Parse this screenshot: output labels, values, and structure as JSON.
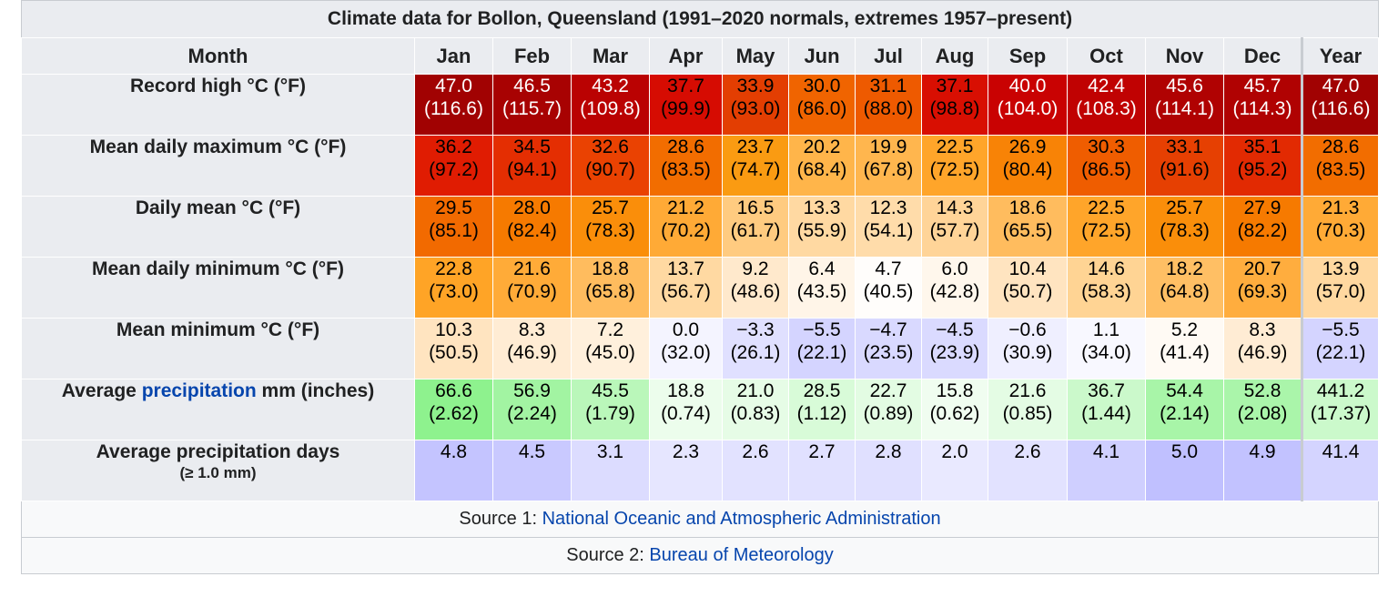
{
  "title": "Climate data for Bollon, Queensland (1991–2020 normals, extremes 1957–present)",
  "header": {
    "month": "Month",
    "months": [
      "Jan",
      "Feb",
      "Mar",
      "Apr",
      "May",
      "Jun",
      "Jul",
      "Aug",
      "Sep",
      "Oct",
      "Nov",
      "Dec"
    ],
    "year": "Year"
  },
  "rows": [
    {
      "label": "Record high °C (°F)",
      "label_pre": "",
      "label_link": "",
      "label_post": "",
      "note": "",
      "values": [
        [
          "47.0",
          "(116.6)"
        ],
        [
          "46.5",
          "(115.7)"
        ],
        [
          "43.2",
          "(109.8)"
        ],
        [
          "37.7",
          "(99.9)"
        ],
        [
          "33.9",
          "(93.0)"
        ],
        [
          "30.0",
          "(86.0)"
        ],
        [
          "31.1",
          "(88.0)"
        ],
        [
          "37.1",
          "(98.8)"
        ],
        [
          "40.0",
          "(104.0)"
        ],
        [
          "42.4",
          "(108.3)"
        ],
        [
          "45.6",
          "(114.1)"
        ],
        [
          "45.7",
          "(114.3)"
        ],
        [
          "47.0",
          "(116.6)"
        ]
      ],
      "colors": [
        "#a10202",
        "#a80202",
        "#ba0202",
        "#d60c02",
        "#e33e02",
        "#f06400",
        "#ee5a00",
        "#d80f02",
        "#c90202",
        "#c00202",
        "#b00202",
        "#b00202",
        "#a10202"
      ],
      "text": [
        "#fff",
        "#fff",
        "#fff",
        "#000",
        "#000",
        "#000",
        "#000",
        "#000",
        "#fff",
        "#fff",
        "#fff",
        "#fff",
        "#fff"
      ]
    },
    {
      "label": "Mean daily maximum °C (°F)",
      "label_pre": "",
      "label_link": "",
      "label_post": "",
      "note": "",
      "values": [
        [
          "36.2",
          "(97.2)"
        ],
        [
          "34.5",
          "(94.1)"
        ],
        [
          "32.6",
          "(90.7)"
        ],
        [
          "28.6",
          "(83.5)"
        ],
        [
          "23.7",
          "(74.7)"
        ],
        [
          "20.2",
          "(68.4)"
        ],
        [
          "19.9",
          "(67.8)"
        ],
        [
          "22.5",
          "(72.5)"
        ],
        [
          "26.9",
          "(80.4)"
        ],
        [
          "30.3",
          "(86.5)"
        ],
        [
          "33.1",
          "(91.6)"
        ],
        [
          "35.1",
          "(95.2)"
        ],
        [
          "28.6",
          "(83.5)"
        ]
      ],
      "colors": [
        "#e01c02",
        "#e42e02",
        "#ea4202",
        "#f26d00",
        "#fa9b12",
        "#ffb54a",
        "#ffb64e",
        "#ffa52a",
        "#f88306",
        "#ef5d00",
        "#e64002",
        "#e22a02",
        "#f26d00"
      ],
      "text": [
        "#000",
        "#000",
        "#000",
        "#000",
        "#000",
        "#000",
        "#000",
        "#000",
        "#000",
        "#000",
        "#000",
        "#000",
        "#000"
      ]
    },
    {
      "label": "Daily mean °C (°F)",
      "label_pre": "",
      "label_link": "",
      "label_post": "",
      "note": "",
      "values": [
        [
          "29.5",
          "(85.1)"
        ],
        [
          "28.0",
          "(82.4)"
        ],
        [
          "25.7",
          "(78.3)"
        ],
        [
          "21.2",
          "(70.2)"
        ],
        [
          "16.5",
          "(61.7)"
        ],
        [
          "13.3",
          "(55.9)"
        ],
        [
          "12.3",
          "(54.1)"
        ],
        [
          "14.3",
          "(57.7)"
        ],
        [
          "18.6",
          "(65.5)"
        ],
        [
          "22.5",
          "(72.5)"
        ],
        [
          "25.7",
          "(78.3)"
        ],
        [
          "27.9",
          "(82.2)"
        ],
        [
          "21.3",
          "(70.3)"
        ]
      ],
      "colors": [
        "#f26a00",
        "#f67a00",
        "#fa8e0a",
        "#ffaa36",
        "#ffcb80",
        "#ffd9a2",
        "#ffdcaa",
        "#ffd498",
        "#ffbc5e",
        "#ffa52a",
        "#fa8e0a",
        "#f67a00",
        "#ffaa36"
      ],
      "text": [
        "#000",
        "#000",
        "#000",
        "#000",
        "#000",
        "#000",
        "#000",
        "#000",
        "#000",
        "#000",
        "#000",
        "#000",
        "#000"
      ]
    },
    {
      "label": "Mean daily minimum °C (°F)",
      "label_pre": "",
      "label_link": "",
      "label_post": "",
      "note": "",
      "values": [
        [
          "22.8",
          "(73.0)"
        ],
        [
          "21.6",
          "(70.9)"
        ],
        [
          "18.8",
          "(65.8)"
        ],
        [
          "13.7",
          "(56.7)"
        ],
        [
          "9.2",
          "(48.6)"
        ],
        [
          "6.4",
          "(43.5)"
        ],
        [
          "4.7",
          "(40.5)"
        ],
        [
          "6.0",
          "(42.8)"
        ],
        [
          "10.4",
          "(50.7)"
        ],
        [
          "14.6",
          "(58.3)"
        ],
        [
          "18.2",
          "(64.8)"
        ],
        [
          "20.7",
          "(69.3)"
        ],
        [
          "13.9",
          "(57.0)"
        ]
      ],
      "colors": [
        "#ffa426",
        "#ffab38",
        "#ffbc5e",
        "#ffd9a2",
        "#ffe9cc",
        "#fff5e8",
        "#fffdfb",
        "#fff7ec",
        "#ffe4c0",
        "#ffd494",
        "#ffbf64",
        "#ffad3e",
        "#ffd8a0"
      ],
      "text": [
        "#000",
        "#000",
        "#000",
        "#000",
        "#000",
        "#000",
        "#000",
        "#000",
        "#000",
        "#000",
        "#000",
        "#000",
        "#000"
      ]
    },
    {
      "label": "Mean minimum °C (°F)",
      "label_pre": "",
      "label_link": "",
      "label_post": "",
      "note": "",
      "values": [
        [
          "10.3",
          "(50.5)"
        ],
        [
          "8.3",
          "(46.9)"
        ],
        [
          "7.2",
          "(45.0)"
        ],
        [
          "0.0",
          "(32.0)"
        ],
        [
          "−3.3",
          "(26.1)"
        ],
        [
          "−5.5",
          "(22.1)"
        ],
        [
          "−4.7",
          "(23.5)"
        ],
        [
          "−4.5",
          "(23.9)"
        ],
        [
          "−0.6",
          "(30.9)"
        ],
        [
          "1.1",
          "(34.0)"
        ],
        [
          "5.2",
          "(41.4)"
        ],
        [
          "8.3",
          "(46.9)"
        ],
        [
          "−5.5",
          "(22.1)"
        ]
      ],
      "colors": [
        "#ffe4c0",
        "#ffecd4",
        "#fff0dc",
        "#f4f4ff",
        "#e0e0ff",
        "#d4d4ff",
        "#d9d9ff",
        "#dadaff",
        "#efefff",
        "#f8f8ff",
        "#fffaf4",
        "#ffecd4",
        "#d4d4ff"
      ],
      "text": [
        "#000",
        "#000",
        "#000",
        "#000",
        "#000",
        "#000",
        "#000",
        "#000",
        "#000",
        "#000",
        "#000",
        "#000",
        "#000"
      ]
    },
    {
      "label": "",
      "label_pre": "Average ",
      "label_link": "precipitation",
      "label_post": " mm (inches)",
      "note": "",
      "values": [
        [
          "66.6",
          "(2.62)"
        ],
        [
          "56.9",
          "(2.24)"
        ],
        [
          "45.5",
          "(1.79)"
        ],
        [
          "18.8",
          "(0.74)"
        ],
        [
          "21.0",
          "(0.83)"
        ],
        [
          "28.5",
          "(1.12)"
        ],
        [
          "22.7",
          "(0.89)"
        ],
        [
          "15.8",
          "(0.62)"
        ],
        [
          "21.6",
          "(0.85)"
        ],
        [
          "36.7",
          "(1.44)"
        ],
        [
          "54.4",
          "(2.14)"
        ],
        [
          "52.8",
          "(2.08)"
        ],
        [
          "441.2",
          "(17.37)"
        ]
      ],
      "colors": [
        "#8ef28e",
        "#a2f4a2",
        "#baf7ba",
        "#ecfdec",
        "#e6fce6",
        "#d8fbd8",
        "#e3fce3",
        "#f0fdf0",
        "#e4fce4",
        "#cbf9cb",
        "#a8f5a8",
        "#aaf5aa",
        "#cbf9cb"
      ],
      "text": [
        "#000",
        "#000",
        "#000",
        "#000",
        "#000",
        "#000",
        "#000",
        "#000",
        "#000",
        "#000",
        "#000",
        "#000",
        "#000"
      ]
    },
    {
      "label": "Average precipitation days",
      "label_pre": "",
      "label_link": "",
      "label_post": "",
      "note": "(≥ 1.0 mm)",
      "values": [
        [
          "4.8",
          ""
        ],
        [
          "4.5",
          ""
        ],
        [
          "3.1",
          ""
        ],
        [
          "2.3",
          ""
        ],
        [
          "2.6",
          ""
        ],
        [
          "2.7",
          ""
        ],
        [
          "2.8",
          ""
        ],
        [
          "2.0",
          ""
        ],
        [
          "2.6",
          ""
        ],
        [
          "4.1",
          ""
        ],
        [
          "5.0",
          ""
        ],
        [
          "4.9",
          ""
        ],
        [
          "41.4",
          ""
        ]
      ],
      "colors": [
        "#c4c4ff",
        "#c9c9ff",
        "#dcdcff",
        "#e6e6ff",
        "#e2e2ff",
        "#e1e1ff",
        "#e0e0ff",
        "#e9e9ff",
        "#e2e2ff",
        "#cfcfff",
        "#c0c0ff",
        "#c2c2ff",
        "#d4d4ff"
      ],
      "text": [
        "#000",
        "#000",
        "#000",
        "#000",
        "#000",
        "#000",
        "#000",
        "#000",
        "#000",
        "#000",
        "#000",
        "#000",
        "#000"
      ]
    }
  ],
  "sources": [
    {
      "prefix": "Source 1: ",
      "link": "National Oceanic and Atmospheric Administration"
    },
    {
      "prefix": "Source 2: ",
      "link": "Bureau of Meteorology"
    }
  ]
}
